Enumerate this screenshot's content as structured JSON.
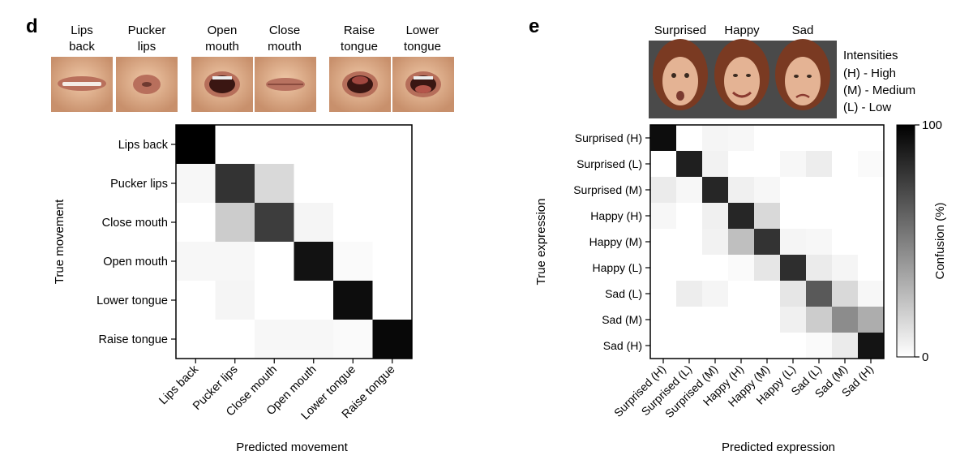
{
  "panel_d": {
    "letter": "d",
    "thumb_labels": [
      [
        "Lips",
        "back"
      ],
      [
        "Pucker",
        "lips"
      ],
      [
        "Open",
        "mouth"
      ],
      [
        "Close",
        "mouth"
      ],
      [
        "Raise",
        "tongue"
      ],
      [
        "Lower",
        "tongue"
      ]
    ]
  },
  "panel_e": {
    "letter": "e",
    "thumb_labels": [
      "Surprised",
      "Happy",
      "Sad"
    ],
    "intensity_legend": [
      "Intensities",
      "(H) - High",
      "(M) - Medium",
      "(L) - Low"
    ],
    "colorbar": {
      "max_label": "100",
      "min_label": "0",
      "label": "Confusion (%)"
    }
  },
  "chart_data": [
    {
      "type": "heatmap",
      "title": "",
      "xlabel": "Predicted movement",
      "ylabel": "True movement",
      "x_categories": [
        "Lips back",
        "Pucker lips",
        "Close mouth",
        "Open mouth",
        "Lower tongue",
        "Raise tongue"
      ],
      "y_categories": [
        "Lips back",
        "Pucker lips",
        "Close mouth",
        "Open mouth",
        "Lower tongue",
        "Raise tongue"
      ],
      "value_range": [
        0,
        100
      ],
      "values": [
        [
          100,
          0,
          0,
          0,
          0,
          0
        ],
        [
          3,
          80,
          15,
          0,
          0,
          0
        ],
        [
          0,
          20,
          76,
          4,
          0,
          0
        ],
        [
          3,
          3,
          0,
          93,
          2,
          0
        ],
        [
          0,
          4,
          0,
          0,
          95,
          0
        ],
        [
          0,
          0,
          3,
          3,
          2,
          97
        ]
      ]
    },
    {
      "type": "heatmap",
      "title": "",
      "xlabel": "Predicted expression",
      "ylabel": "True expression",
      "x_categories": [
        "Surprised (H)",
        "Surprised (L)",
        "Surprised (M)",
        "Happy (H)",
        "Happy (M)",
        "Happy (L)",
        "Sad (L)",
        "Sad (M)",
        "Sad (H)"
      ],
      "y_categories": [
        "Surprised (H)",
        "Surprised (L)",
        "Surprised (M)",
        "Happy (H)",
        "Happy (M)",
        "Happy (L)",
        "Sad (L)",
        "Sad (M)",
        "Sad (H)"
      ],
      "value_range": [
        0,
        100
      ],
      "colorbar": {
        "min": 0,
        "max": 100,
        "label": "Confusion (%)"
      },
      "values": [
        [
          95,
          0,
          4,
          3,
          0,
          0,
          0,
          0,
          0
        ],
        [
          0,
          88,
          5,
          0,
          0,
          3,
          7,
          0,
          2
        ],
        [
          8,
          3,
          85,
          6,
          3,
          0,
          0,
          0,
          0
        ],
        [
          3,
          0,
          6,
          85,
          15,
          0,
          0,
          0,
          0
        ],
        [
          0,
          0,
          5,
          25,
          80,
          4,
          3,
          0,
          0
        ],
        [
          0,
          0,
          0,
          2,
          10,
          82,
          8,
          4,
          0
        ],
        [
          0,
          7,
          4,
          0,
          0,
          10,
          65,
          15,
          3
        ],
        [
          0,
          0,
          0,
          0,
          0,
          6,
          20,
          45,
          32
        ],
        [
          0,
          0,
          0,
          0,
          0,
          0,
          2,
          8,
          92
        ]
      ]
    }
  ]
}
